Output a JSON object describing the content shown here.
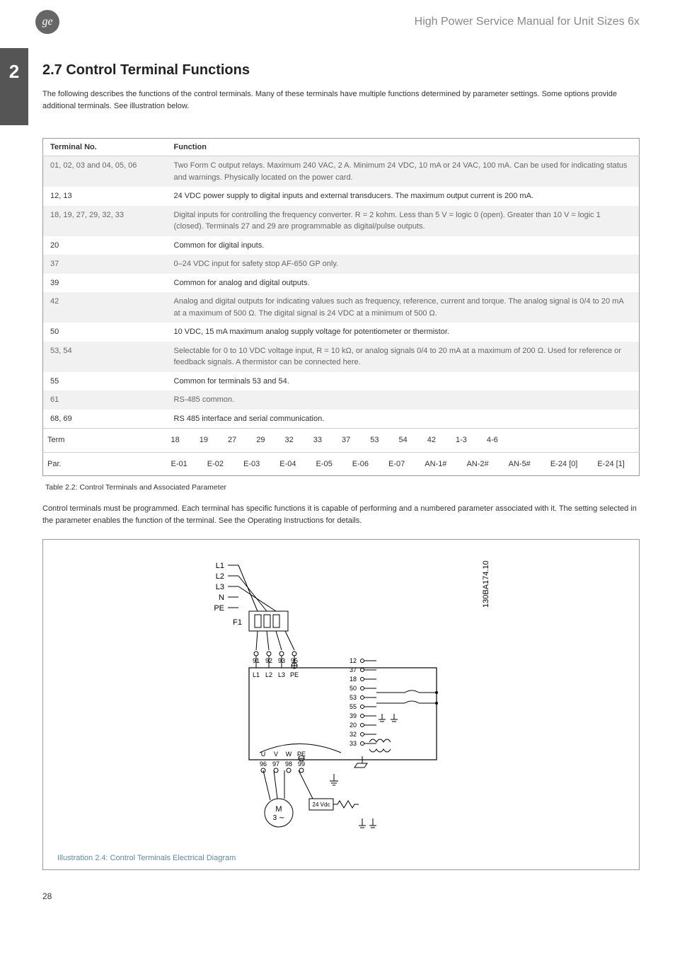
{
  "header": {
    "logo_text": "ge",
    "doc_title": "High Power Service Manual for Unit Sizes 6x"
  },
  "section": {
    "number": "2",
    "heading": "2.7  Control Terminal Functions",
    "intro": "The following describes the functions of the control terminals. Many of these terminals have multiple functions determined by parameter settings. Some options provide additional terminals. See illustration below."
  },
  "func_table": {
    "col1_header": "Terminal No.",
    "col2_header": "Function",
    "rows": [
      {
        "shaded": true,
        "term": "01, 02, 03 and 04, 05, 06",
        "func": "Two Form C output relays. Maximum 240 VAC, 2 A. Minimum 24 VDC, 10 mA or 24 VAC, 100 mA. Can be used for indicating status and warnings. Physically located on the power card."
      },
      {
        "shaded": false,
        "term": "12, 13",
        "func": "24 VDC power supply to digital inputs and external transducers. The maximum output current is 200 mA."
      },
      {
        "shaded": true,
        "term": "18, 19, 27, 29, 32, 33",
        "func": "Digital inputs for controlling the frequency converter. R = 2 kohm. Less than 5 V = logic 0 (open). Greater than 10 V = logic 1 (closed). Terminals 27 and 29 are programmable as digital/pulse outputs."
      },
      {
        "shaded": false,
        "term": "20",
        "func": "Common for digital inputs."
      },
      {
        "shaded": true,
        "term": "37",
        "func": "0–24 VDC input for safety stop AF-650 GP only."
      },
      {
        "shaded": false,
        "term": "39",
        "func": "Common for analog and digital outputs."
      },
      {
        "shaded": true,
        "term": "42",
        "func": "Analog and digital outputs for indicating values such as frequency, reference, current and torque. The analog signal is 0/4 to 20 mA at a maximum of 500 Ω. The digital signal is 24 VDC at a minimum of 500 Ω."
      },
      {
        "shaded": false,
        "term": "50",
        "func": "10 VDC, 15 mA maximum analog supply voltage for potentiometer or thermistor."
      },
      {
        "shaded": true,
        "term": "53, 54",
        "func": "Selectable for 0 to 10 VDC voltage input, R = 10 kΩ, or analog signals 0/4 to 20 mA at a maximum of 200 Ω. Used for reference or feedback signals. A thermistor can be connected here."
      },
      {
        "shaded": false,
        "term": "55",
        "func": "Common for terminals 53 and 54."
      },
      {
        "shaded": true,
        "term": "61",
        "func": "RS-485 common."
      },
      {
        "shaded": false,
        "term": "68, 69",
        "func": "RS 485 interface and serial communication."
      }
    ],
    "term_row": {
      "label": "Term",
      "cells": [
        "18",
        "19",
        "27",
        "29",
        "32",
        "33",
        "37",
        "53",
        "54",
        "42",
        "1-3",
        "4-6"
      ]
    },
    "par_row": {
      "label": "Par.",
      "cells": [
        "E-01",
        "E-02",
        "E-03",
        "E-04",
        "E-05",
        "E-06",
        "E-07",
        "AN-1#",
        "AN-2#",
        "AN-5#",
        "E-24 [0]",
        "E-24 [1]"
      ]
    }
  },
  "table_caption": "Table 2.2: Control Terminals and Associated Parameter",
  "explain_text": "Control terminals must be programmed. Each terminal has specific functions it is capable of performing and a numbered parameter associated with it. The setting selected in the parameter enables the function of the terminal. See the Operating Instructions for details.",
  "diagram": {
    "side_label": "130BA174.10",
    "mains_labels": [
      "L1",
      "L2",
      "L3",
      "N",
      "PE"
    ],
    "left_fuse": "F1",
    "left_term_nums": [
      "91",
      "92",
      "93",
      "95"
    ],
    "left_term_letters": [
      "L1",
      "L2",
      "L3",
      "PE"
    ],
    "uvw_nums": [
      "96",
      "97",
      "98",
      "99"
    ],
    "uvw_letters": [
      "U",
      "V",
      "W",
      "PE"
    ],
    "motor_label": "M",
    "motor_sub": "3 ∼",
    "brake_label": "24 Vdc",
    "right_terms": [
      "12",
      "37",
      "18",
      "50",
      "53",
      "55",
      "39",
      "20",
      "32",
      "33"
    ],
    "caption": "Illustration 2.4: Control Terminals Electrical Diagram"
  },
  "footer": {
    "page": "28"
  }
}
